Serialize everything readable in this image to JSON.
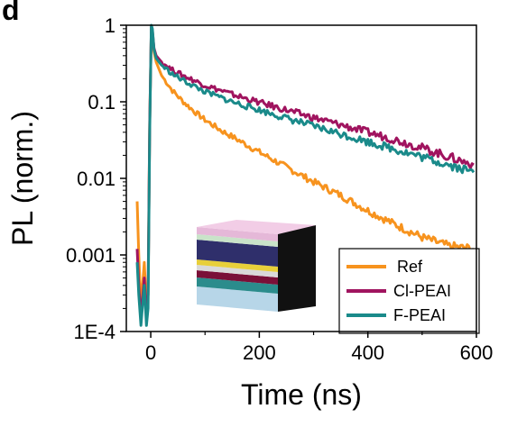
{
  "panel_label": "d",
  "chart_data": {
    "type": "line",
    "xlabel": "Time (ns)",
    "ylabel": "PL (norm.)",
    "x_scale": "linear",
    "y_scale": "log",
    "xlim": [
      -45,
      600
    ],
    "ylim": [
      0.0001,
      1
    ],
    "x_ticks": [
      0,
      200,
      400,
      600
    ],
    "x_tick_labels": [
      "0",
      "200",
      "400",
      "600"
    ],
    "y_ticks": [
      0.0001,
      0.001,
      0.01,
      0.1,
      1
    ],
    "y_tick_labels": [
      "1E-4",
      "0.001",
      "0.01",
      "0.1",
      "1"
    ],
    "grid": false,
    "legend_position": "bottom-right",
    "series": [
      {
        "name": "Ref",
        "color": "#F7931E",
        "points": [
          [
            -25,
            0.005
          ],
          [
            -22,
            0.001
          ],
          [
            -18,
            0.0002
          ],
          [
            -12,
            0.0008
          ],
          [
            -8,
            0.0002
          ],
          [
            -5,
            0.0003
          ],
          [
            -2,
            0.05
          ],
          [
            1,
            0.9
          ],
          [
            3,
            0.8
          ],
          [
            6,
            0.45
          ],
          [
            10,
            0.33
          ],
          [
            20,
            0.22
          ],
          [
            40,
            0.14
          ],
          [
            60,
            0.1
          ],
          [
            80,
            0.075
          ],
          [
            100,
            0.058
          ],
          [
            130,
            0.042
          ],
          [
            160,
            0.032
          ],
          [
            200,
            0.022
          ],
          [
            250,
            0.014
          ],
          [
            300,
            0.009
          ],
          [
            350,
            0.006
          ],
          [
            400,
            0.0038
          ],
          [
            450,
            0.0025
          ],
          [
            500,
            0.0017
          ],
          [
            550,
            0.0013
          ],
          [
            595,
            0.0012
          ]
        ]
      },
      {
        "name": "Cl-PEAI",
        "color": "#A0145F",
        "points": [
          [
            -25,
            0.0012
          ],
          [
            -22,
            0.0004
          ],
          [
            -18,
            0.00015
          ],
          [
            -12,
            0.0005
          ],
          [
            -8,
            0.00015
          ],
          [
            -5,
            0.0003
          ],
          [
            -2,
            0.05
          ],
          [
            1,
            0.95
          ],
          [
            3,
            0.85
          ],
          [
            6,
            0.5
          ],
          [
            10,
            0.4
          ],
          [
            20,
            0.33
          ],
          [
            40,
            0.26
          ],
          [
            60,
            0.22
          ],
          [
            80,
            0.19
          ],
          [
            100,
            0.165
          ],
          [
            150,
            0.125
          ],
          [
            200,
            0.098
          ],
          [
            250,
            0.078
          ],
          [
            300,
            0.062
          ],
          [
            350,
            0.05
          ],
          [
            400,
            0.04
          ],
          [
            450,
            0.032
          ],
          [
            500,
            0.025
          ],
          [
            550,
            0.019
          ],
          [
            595,
            0.015
          ]
        ]
      },
      {
        "name": "F-PEAI",
        "color": "#1A8A8A",
        "points": [
          [
            -25,
            0.0008
          ],
          [
            -22,
            0.0003
          ],
          [
            -18,
            0.00012
          ],
          [
            -12,
            0.0004
          ],
          [
            -8,
            0.00012
          ],
          [
            -5,
            0.0002
          ],
          [
            -2,
            0.04
          ],
          [
            1,
            1.0
          ],
          [
            3,
            0.9
          ],
          [
            6,
            0.48
          ],
          [
            10,
            0.37
          ],
          [
            20,
            0.3
          ],
          [
            40,
            0.23
          ],
          [
            60,
            0.19
          ],
          [
            80,
            0.16
          ],
          [
            100,
            0.135
          ],
          [
            150,
            0.1
          ],
          [
            200,
            0.078
          ],
          [
            250,
            0.061
          ],
          [
            300,
            0.048
          ],
          [
            350,
            0.038
          ],
          [
            400,
            0.03
          ],
          [
            450,
            0.024
          ],
          [
            500,
            0.019
          ],
          [
            550,
            0.015
          ],
          [
            595,
            0.012
          ]
        ]
      }
    ]
  }
}
